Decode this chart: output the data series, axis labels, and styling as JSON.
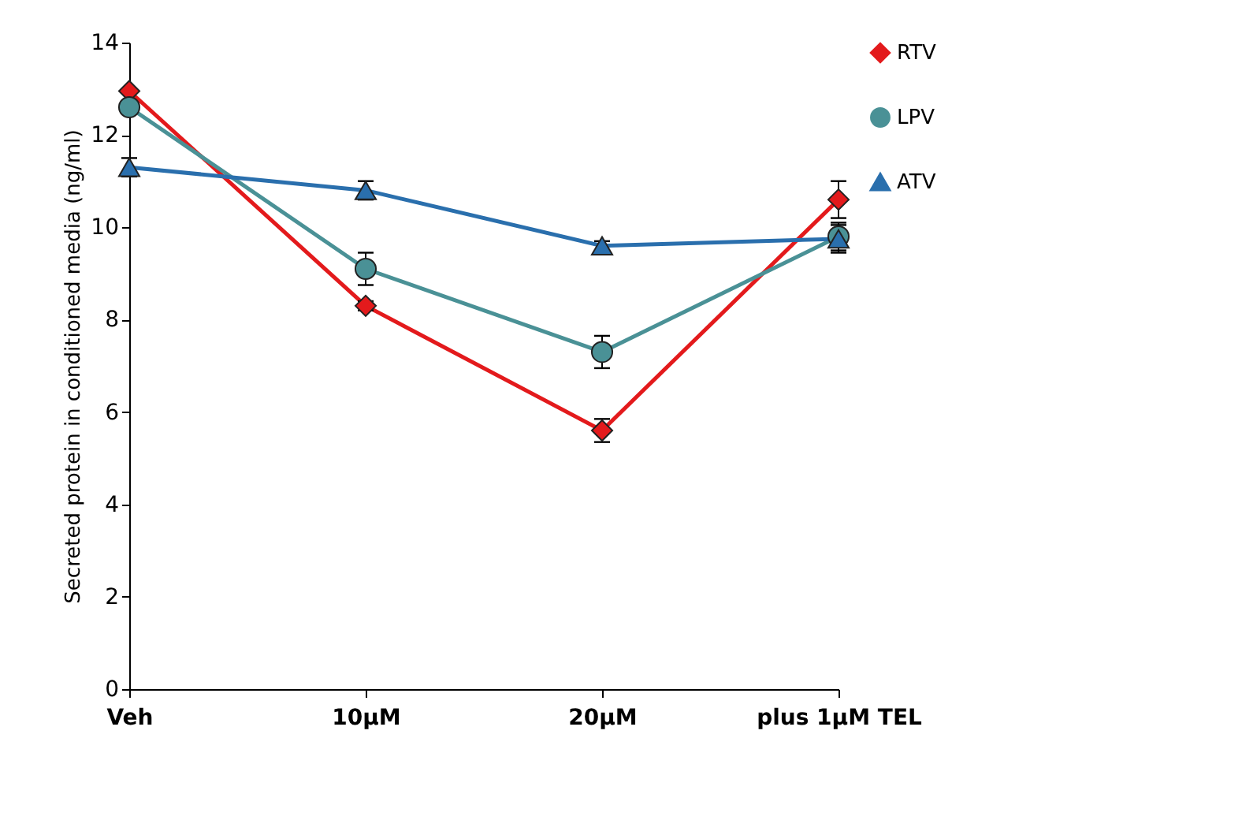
{
  "chart_data": {
    "type": "line",
    "ylabel": "Secreted protein in conditioned  media (ng/ml)",
    "categories": [
      "Veh",
      "10μM",
      "20μM",
      "plus 1μM TEL"
    ],
    "series": [
      {
        "name": "RTV",
        "color": "#e31a1c",
        "marker": "diamond",
        "values": [
          12.95,
          8.3,
          5.6,
          10.6
        ],
        "errors": [
          null,
          0.1,
          0.25,
          0.4
        ]
      },
      {
        "name": "LPV",
        "color": "#4a9196",
        "marker": "circle",
        "values": [
          12.6,
          9.1,
          7.3,
          9.8
        ],
        "errors": [
          null,
          0.35,
          0.35,
          0.3
        ]
      },
      {
        "name": "ATV",
        "color": "#2a6fad",
        "marker": "triangle",
        "values": [
          11.3,
          10.8,
          9.6,
          9.75
        ],
        "errors": [
          0.2,
          0.2,
          0.1,
          0.3
        ]
      }
    ],
    "ylim": [
      0,
      14
    ],
    "yticks": [
      0,
      2,
      4,
      6,
      8,
      10,
      12,
      14
    ],
    "grid": false,
    "legend": "right"
  }
}
